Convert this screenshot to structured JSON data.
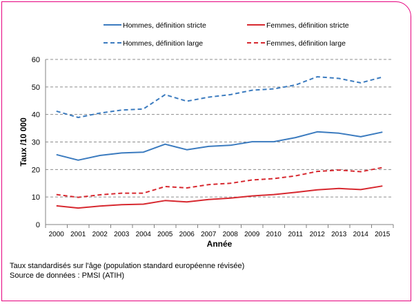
{
  "footnote": {
    "line1": "Taux standardisés sur l'âge (population standard européenne révisée)",
    "line2": "Source de données : PMSI (ATIH)"
  },
  "chart_data": {
    "type": "line",
    "xlabel": "Année",
    "ylabel": "Taux /10 000",
    "ylim": [
      0,
      60
    ],
    "yticks": [
      0,
      10,
      20,
      30,
      40,
      50,
      60
    ],
    "grid": "horizontal",
    "legend_position": "top",
    "categories": [
      "2000",
      "2001",
      "2002",
      "2003",
      "2004",
      "2005",
      "2006",
      "2007",
      "2008",
      "2009",
      "2010",
      "2011",
      "2012",
      "2013",
      "2014",
      "2015"
    ],
    "series": [
      {
        "name": "Hommes, définition stricte",
        "color": "#3b7bbf",
        "dash": "solid",
        "values": [
          25.4,
          23.4,
          25.1,
          26.0,
          26.3,
          29.2,
          27.2,
          28.4,
          28.8,
          30.1,
          30.1,
          31.6,
          33.7,
          33.2,
          31.9,
          33.6
        ]
      },
      {
        "name": "Femmes, définition stricte",
        "color": "#d7282f",
        "dash": "solid",
        "values": [
          6.8,
          6.0,
          6.7,
          7.2,
          7.4,
          8.7,
          8.2,
          9.1,
          9.6,
          10.4,
          10.9,
          11.7,
          12.6,
          13.1,
          12.7,
          14.0
        ]
      },
      {
        "name": "Hommes, définition large",
        "color": "#3b7bbf",
        "dash": "dashed",
        "values": [
          41.2,
          38.9,
          40.5,
          41.6,
          42.0,
          47.2,
          44.8,
          46.3,
          47.2,
          48.8,
          49.3,
          50.7,
          53.7,
          53.1,
          51.5,
          53.6
        ]
      },
      {
        "name": "Femmes, définition large",
        "color": "#d7282f",
        "dash": "dashed",
        "values": [
          10.9,
          9.9,
          10.8,
          11.4,
          11.4,
          13.8,
          13.3,
          14.5,
          15.0,
          16.2,
          16.7,
          17.7,
          19.3,
          19.8,
          19.2,
          20.7
        ]
      }
    ]
  }
}
